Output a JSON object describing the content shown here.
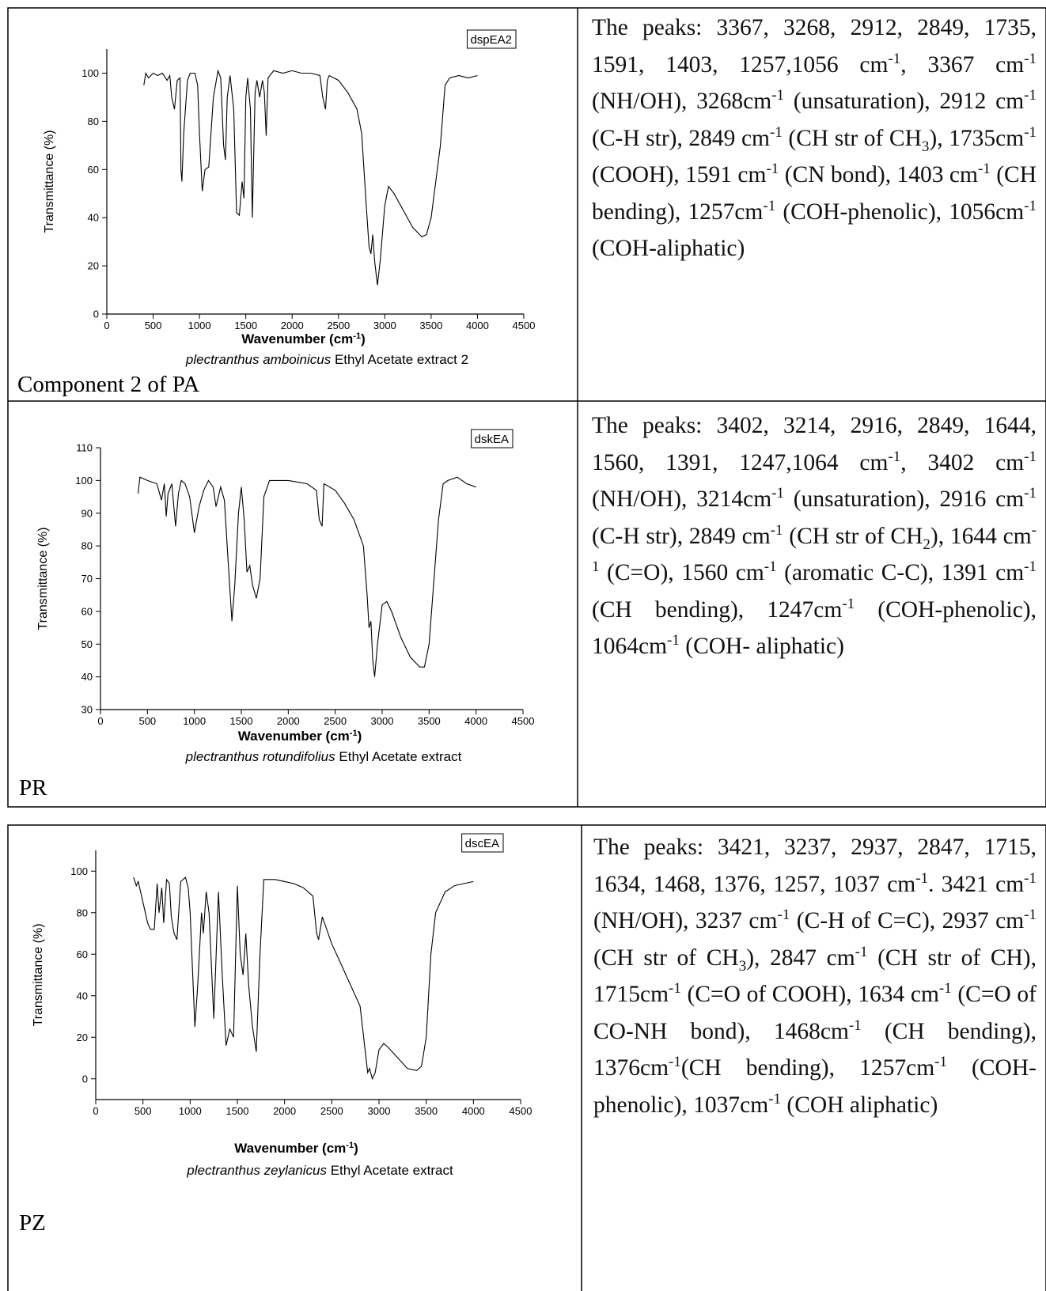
{
  "chart_data": [
    {
      "type": "line",
      "subtitle": [
        {
          "text": "plectranthus  amboinicus",
          "style": "italic"
        },
        " Ethyl Acetate extract 2"
      ],
      "xlabel": [
        "Wavenumber (cm",
        {
          "text": "-1",
          "style": "sup"
        },
        ")"
      ],
      "ylabel": "Transmittance (%)",
      "xlim": [
        0,
        4500
      ],
      "xticks": [
        0,
        500,
        1000,
        1500,
        2000,
        2500,
        3000,
        3500,
        4000,
        4500
      ],
      "ylim": [
        0,
        110
      ],
      "yticks": [
        0,
        20,
        40,
        60,
        80,
        100
      ],
      "legend": "upper right",
      "x": [
        400,
        420,
        450,
        500,
        550,
        600,
        650,
        680,
        700,
        730,
        760,
        790,
        800,
        810,
        830,
        870,
        900,
        950,
        980,
        1000,
        1030,
        1060,
        1100,
        1150,
        1200,
        1230,
        1260,
        1280,
        1300,
        1330,
        1370,
        1400,
        1430,
        1460,
        1480,
        1500,
        1520,
        1550,
        1570,
        1600,
        1620,
        1650,
        1680,
        1700,
        1720,
        1740,
        1800,
        1900,
        2000,
        2100,
        2200,
        2300,
        2330,
        2360,
        2380,
        2400,
        2500,
        2600,
        2700,
        2750,
        2800,
        2830,
        2850,
        2870,
        2890,
        2920,
        2950,
        3000,
        3040,
        3100,
        3200,
        3300,
        3400,
        3450,
        3500,
        3600,
        3650,
        3700,
        3800,
        3900,
        4000
      ],
      "series": [
        {
          "name": "dspEA2",
          "color": "#000000",
          "values": [
            95,
            100,
            98,
            100,
            99,
            100,
            97,
            99,
            90,
            85,
            97,
            98,
            60,
            55,
            75,
            97,
            100,
            100,
            95,
            75,
            51,
            60,
            61,
            90,
            101,
            98,
            70,
            64,
            90,
            99,
            85,
            42,
            41,
            55,
            48,
            90,
            98,
            85,
            40,
            92,
            97,
            90,
            97,
            92,
            74,
            98,
            101,
            100,
            101,
            100,
            100,
            99,
            90,
            85,
            97,
            99,
            97,
            92,
            85,
            75,
            45,
            28,
            25,
            33,
            22,
            12,
            22,
            45,
            53,
            50,
            43,
            36,
            32,
            33,
            40,
            70,
            95,
            98,
            99,
            98,
            99
          ]
        }
      ]
    },
    {
      "type": "line",
      "subtitle": [
        {
          "text": "plectranthus rotundifolius",
          "style": "italic"
        },
        " Ethyl Acetate extract"
      ],
      "xlabel": [
        "Wavenumber (cm",
        {
          "text": "-1",
          "style": "sup"
        },
        ")"
      ],
      "ylabel": "Transmittance (%)",
      "xlim": [
        0,
        4500
      ],
      "xticks": [
        0,
        500,
        1000,
        1500,
        2000,
        2500,
        3000,
        3500,
        4000,
        4500
      ],
      "ylim": [
        30,
        110
      ],
      "yticks": [
        30,
        40,
        50,
        60,
        70,
        80,
        90,
        100,
        110
      ],
      "legend": "upper right",
      "x": [
        400,
        420,
        500,
        600,
        650,
        680,
        700,
        720,
        760,
        800,
        830,
        860,
        900,
        950,
        1000,
        1050,
        1100,
        1150,
        1200,
        1230,
        1280,
        1320,
        1360,
        1400,
        1430,
        1470,
        1500,
        1530,
        1560,
        1590,
        1620,
        1660,
        1700,
        1740,
        1800,
        2000,
        2200,
        2300,
        2330,
        2360,
        2380,
        2500,
        2600,
        2700,
        2800,
        2840,
        2860,
        2880,
        2900,
        2920,
        2950,
        3000,
        3050,
        3100,
        3200,
        3300,
        3400,
        3450,
        3500,
        3600,
        3650,
        3700,
        3800,
        3900,
        4000
      ],
      "series": [
        {
          "name": "dskEA",
          "color": "#000000",
          "values": [
            96,
            101,
            100,
            99,
            94,
            99,
            89,
            96,
            99,
            86,
            96,
            100,
            99,
            95,
            84,
            92,
            97,
            100,
            98,
            92,
            98,
            94,
            75,
            57,
            68,
            90,
            98,
            88,
            72,
            74,
            68,
            64,
            70,
            95,
            100,
            100,
            99,
            97,
            88,
            86,
            99,
            97,
            93,
            88,
            80,
            65,
            55,
            57,
            45,
            40,
            50,
            62,
            63,
            60,
            52,
            46,
            43,
            43,
            50,
            88,
            99,
            100,
            101,
            99,
            98
          ]
        }
      ]
    },
    {
      "type": "line",
      "subtitle": [
        {
          "text": "plectranthus  zeylanicus",
          "style": "italic"
        },
        " Ethyl Acetate extract"
      ],
      "xlabel": [
        "Wavenumber (cm",
        {
          "text": "-1",
          "style": "sup"
        },
        ")"
      ],
      "ylabel": "Transmittance (%)",
      "xlim": [
        0,
        4500
      ],
      "xticks": [
        0,
        500,
        1000,
        1500,
        2000,
        2500,
        3000,
        3500,
        4000,
        4500
      ],
      "ylim": [
        -10,
        110
      ],
      "yticks": [
        0,
        20,
        40,
        60,
        80,
        100
      ],
      "legend": "upper right",
      "x": [
        400,
        430,
        450,
        500,
        550,
        580,
        620,
        650,
        670,
        700,
        720,
        750,
        780,
        800,
        830,
        860,
        900,
        950,
        980,
        1000,
        1050,
        1080,
        1120,
        1140,
        1170,
        1200,
        1250,
        1300,
        1340,
        1380,
        1420,
        1460,
        1500,
        1530,
        1560,
        1590,
        1620,
        1660,
        1700,
        1740,
        1780,
        1900,
        2000,
        2100,
        2200,
        2300,
        2340,
        2360,
        2400,
        2500,
        2600,
        2700,
        2800,
        2850,
        2880,
        2900,
        2930,
        2960,
        3000,
        3050,
        3100,
        3200,
        3300,
        3400,
        3450,
        3500,
        3550,
        3600,
        3700,
        3800,
        4000
      ],
      "series": [
        {
          "name": "dscEA",
          "color": "#000000",
          "values": [
            97,
            93,
            95,
            85,
            75,
            72,
            72,
            94,
            80,
            92,
            75,
            96,
            94,
            78,
            70,
            67,
            95,
            97,
            92,
            80,
            25,
            45,
            80,
            70,
            90,
            80,
            29,
            90,
            50,
            16,
            24,
            20,
            93,
            60,
            50,
            70,
            45,
            25,
            13,
            60,
            96,
            96,
            95,
            94,
            92,
            88,
            70,
            67,
            78,
            65,
            55,
            45,
            35,
            15,
            3,
            5,
            0,
            3,
            14,
            17,
            15,
            10,
            5,
            4,
            6,
            20,
            60,
            80,
            90,
            93,
            95
          ]
        }
      ]
    }
  ],
  "rows": [
    {
      "caption": "Component 2 of PA",
      "description": [
        "The peaks: 3367, 3268, 2912, 2849, 1735, 1591, 1403, 1257,1056 cm",
        {
          "text": "-1",
          "style": "sup"
        },
        ", 3367 cm",
        {
          "text": "-1",
          "style": "sup"
        },
        " (NH/OH), 3268cm",
        {
          "text": "-1",
          "style": "sup"
        },
        " (unsaturation), 2912 cm",
        {
          "text": "-1",
          "style": "sup"
        },
        " (C-H str), 2849 cm",
        {
          "text": "-1",
          "style": "sup"
        },
        " (CH str of CH",
        {
          "text": "3",
          "style": "sub"
        },
        "), 1735cm",
        {
          "text": "-1",
          "style": "sup"
        },
        " (COOH), 1591 cm",
        {
          "text": "-1",
          "style": "sup"
        },
        " (CN bond), 1403 cm",
        {
          "text": "-1",
          "style": "sup"
        },
        " (CH bending), 1257cm",
        {
          "text": "-1",
          "style": "sup"
        },
        " (COH-phenolic), 1056cm",
        {
          "text": "-1",
          "style": "sup"
        },
        " (COH-aliphatic)"
      ]
    },
    {
      "caption": "PR",
      "description": [
        "The peaks: 3402, 3214, 2916, 2849, 1644, 1560, 1391, 1247,1064 cm",
        {
          "text": "-1",
          "style": "sup"
        },
        ", 3402 cm",
        {
          "text": "-1",
          "style": "sup"
        },
        " (NH/OH), 3214cm",
        {
          "text": "-1",
          "style": "sup"
        },
        " (unsaturation), 2916 cm",
        {
          "text": "-1",
          "style": "sup"
        },
        " (C-H str), 2849 cm",
        {
          "text": "-1",
          "style": "sup"
        },
        " (CH str of CH",
        {
          "text": "2",
          "style": "sub"
        },
        "), 1644 cm",
        {
          "text": "-1",
          "style": "sup"
        },
        " (C=O), 1560 cm",
        {
          "text": "-1",
          "style": "sup"
        },
        " (aromatic C-C), 1391 cm",
        {
          "text": "-1",
          "style": "sup"
        },
        " (CH bending), 1247cm",
        {
          "text": "-1",
          "style": "sup"
        },
        " (COH-phenolic), 1064cm",
        {
          "text": "-1",
          "style": "sup"
        },
        " (COH- aliphatic)"
      ]
    },
    {
      "caption": "PZ",
      "description": [
        "The peaks: 3421, 3237, 2937, 2847, 1715, 1634, 1468, 1376, 1257, 1037 cm",
        {
          "text": "-1",
          "style": "sup"
        },
        ". 3421 cm",
        {
          "text": "-1",
          "style": "sup"
        },
        " (NH/OH), 3237 cm",
        {
          "text": "-1",
          "style": "sup"
        },
        " (C-H of C=C), 2937 cm",
        {
          "text": "-1",
          "style": "sup"
        },
        " (CH str of CH",
        {
          "text": "3",
          "style": "sub"
        },
        "), 2847 cm",
        {
          "text": "-1",
          "style": "sup"
        },
        " (CH str of CH), 1715cm",
        {
          "text": "-1",
          "style": "sup"
        },
        " (C=O of COOH), 1634 cm",
        {
          "text": "-1",
          "style": "sup"
        },
        " (C=O of CO-NH bond), 1468cm",
        {
          "text": "-1",
          "style": "sup"
        },
        " (CH bending), 1376cm",
        {
          "text": "-1",
          "style": "sup"
        },
        "(CH bending), 1257cm",
        {
          "text": "-1",
          "style": "sup"
        },
        " (COH-phenolic), 1037cm",
        {
          "text": "-1",
          "style": "sup"
        },
        " (COH aliphatic)"
      ]
    }
  ]
}
